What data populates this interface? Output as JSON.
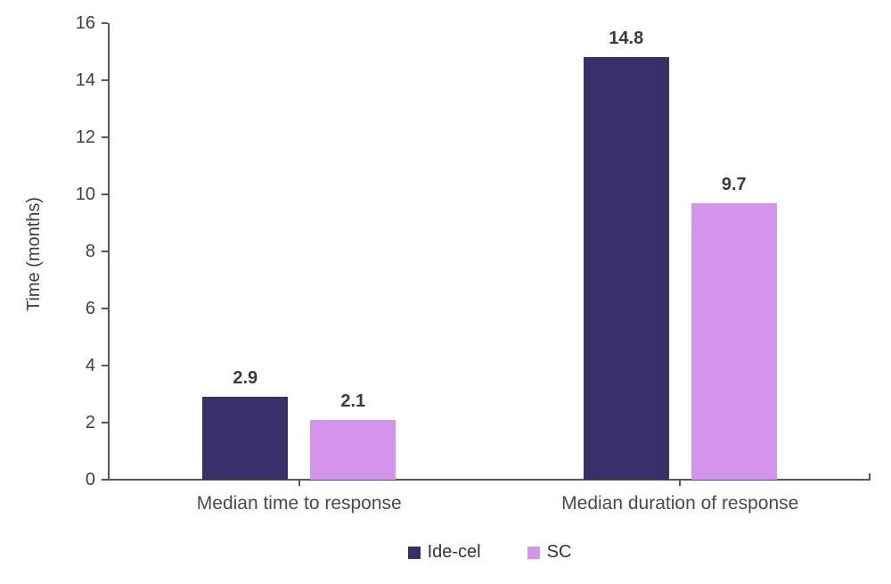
{
  "chart_data": {
    "type": "bar",
    "categories": [
      "Median time to response",
      "Median duration of response"
    ],
    "series": [
      {
        "name": "Ide-cel",
        "color": "#363169",
        "values": [
          2.9,
          14.8
        ]
      },
      {
        "name": "SC",
        "color": "#d494ec",
        "values": [
          2.1,
          9.7
        ]
      }
    ],
    "value_labels": [
      [
        "2.9",
        "14.8"
      ],
      [
        "2.1",
        "9.7"
      ]
    ],
    "title": "",
    "xlabel": "",
    "ylabel": "Time (months)",
    "ylim": [
      0,
      16
    ],
    "ytick_step": 2,
    "yticks": [
      "0",
      "2",
      "4",
      "6",
      "8",
      "10",
      "12",
      "14",
      "16"
    ],
    "grid": false,
    "legend_position": "bottom"
  },
  "colors": {
    "axis": "#58595b",
    "tick_text": "#414042",
    "category_text": "#4a4a4c",
    "value_text": "#3b3b3d",
    "background": "#ffffff"
  }
}
